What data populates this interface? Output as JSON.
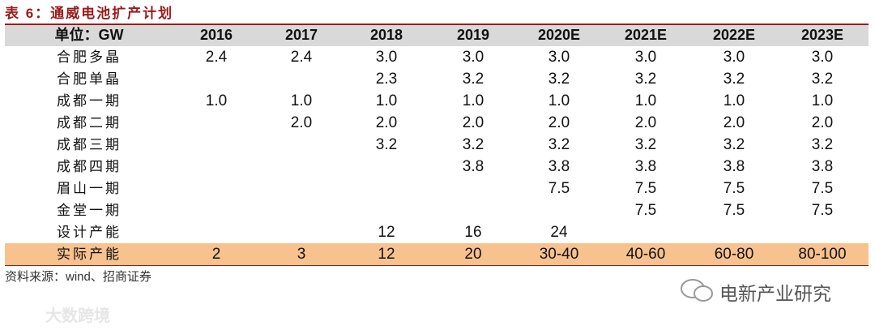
{
  "title": "表 6：通威电池扩产计划",
  "table": {
    "header": [
      "单位：GW",
      "2016",
      "2017",
      "2018",
      "2019",
      "2020E",
      "2021E",
      "2022E",
      "2023E"
    ],
    "rows": [
      [
        "合肥多晶",
        "2.4",
        "2.4",
        "3.0",
        "3.0",
        "3.0",
        "3.0",
        "3.0",
        "3.0"
      ],
      [
        "合肥单晶",
        null,
        null,
        "2.3",
        "3.2",
        "3.2",
        "3.2",
        "3.2",
        "3.2"
      ],
      [
        "成都一期",
        "1.0",
        "1.0",
        "1.0",
        "1.0",
        "1.0",
        "1.0",
        "1.0",
        "1.0"
      ],
      [
        "成都二期",
        null,
        "2.0",
        "2.0",
        "2.0",
        "2.0",
        "2.0",
        "2.0",
        "2.0"
      ],
      [
        "成都三期",
        null,
        null,
        "3.2",
        "3.2",
        "3.2",
        "3.2",
        "3.2",
        "3.2"
      ],
      [
        "成都四期",
        null,
        null,
        null,
        "3.8",
        "3.8",
        "3.8",
        "3.8",
        "3.8"
      ],
      [
        "眉山一期",
        null,
        null,
        null,
        null,
        "7.5",
        "7.5",
        "7.5",
        "7.5"
      ],
      [
        "金堂一期",
        null,
        null,
        null,
        null,
        null,
        "7.5",
        "7.5",
        "7.5"
      ],
      [
        "设计产能",
        null,
        null,
        "12",
        "16",
        "24",
        null,
        null,
        null
      ],
      [
        "实际产能",
        "2",
        "3",
        "12",
        "20",
        "30-40",
        "40-60",
        "60-80",
        "80-100"
      ]
    ]
  },
  "source": "资料来源：wind、招商证券",
  "watermarks": [
    "电新产业研究",
    "大数跨境"
  ]
}
